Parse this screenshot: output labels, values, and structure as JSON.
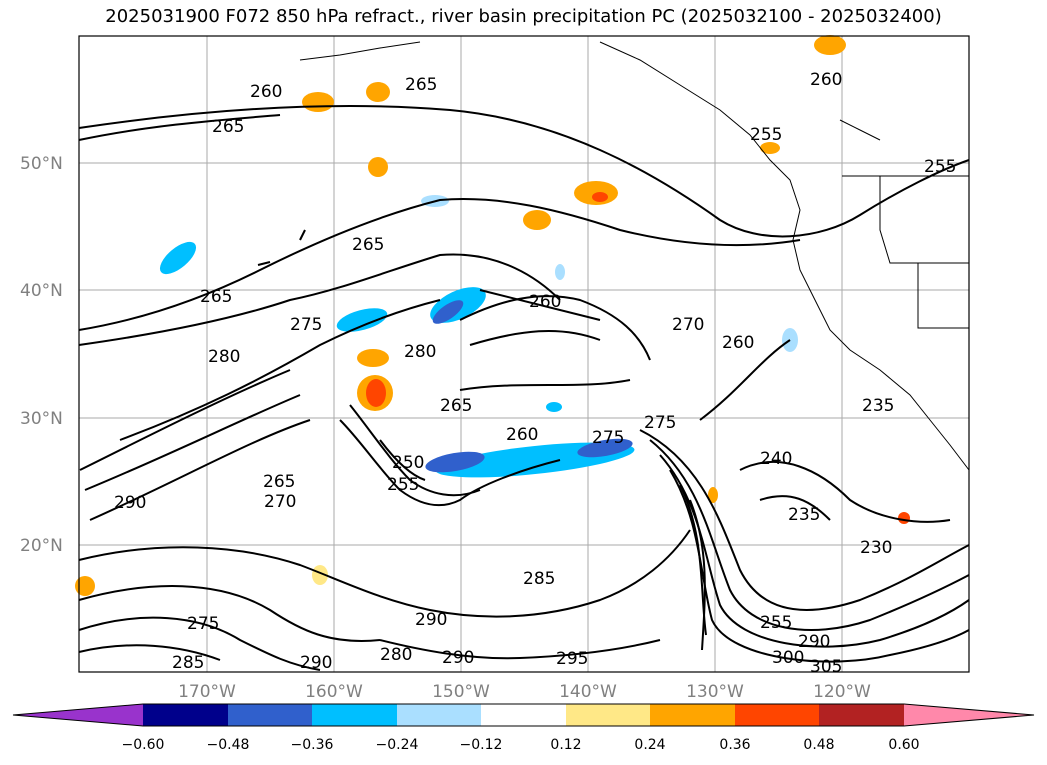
{
  "title": "2025031900 F072 850 hPa refract., river basin precipitation PC (2025032100 - 2025032400)",
  "lat_labels": [
    "50°N",
    "40°N",
    "30°N",
    "20°N"
  ],
  "lon_labels": [
    "170°W",
    "160°W",
    "150°W",
    "140°W",
    "130°W",
    "120°W"
  ],
  "contour_labels": [
    "260",
    "265",
    "265",
    "265",
    "265",
    "270",
    "275",
    "280",
    "280",
    "275",
    "265",
    "260",
    "275",
    "250",
    "255",
    "260",
    "265",
    "270",
    "290",
    "290",
    "285",
    "290",
    "295",
    "290",
    "285",
    "280",
    "275",
    "260",
    "255",
    "240",
    "235",
    "230",
    "260",
    "255",
    "235",
    "300",
    "305",
    "290",
    "255"
  ],
  "colorbar": {
    "colors": [
      "#9933cc",
      "#00008b",
      "#3060cc",
      "#00bfff",
      "#aadfff",
      "#ffffff",
      "#ffe887",
      "#ffa500",
      "#ff4500",
      "#b22222",
      "#ff88aa"
    ],
    "ticks": [
      "−0.60",
      "−0.48",
      "−0.36",
      "−0.24",
      "−0.12",
      "0.12",
      "0.24",
      "0.36",
      "0.48",
      "0.60"
    ]
  }
}
